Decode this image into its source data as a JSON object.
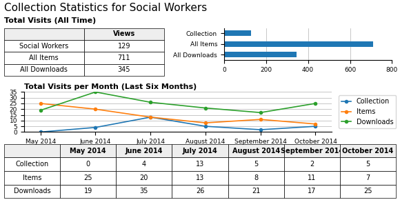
{
  "title": "Collection Statistics for Social Workers",
  "chart_data": [
    {
      "type": "table",
      "title": "Total Visits (All Time)",
      "orientation": "horizontal",
      "categories": [
        "Social Workers",
        "All Items",
        "All Downloads"
      ],
      "series": [
        {
          "name": "Views",
          "values": [
            129,
            711,
            345
          ]
        }
      ]
    },
    {
      "type": "bar",
      "orientation": "horizontal",
      "categories": [
        "Collection",
        "All Items",
        "All Downloads"
      ],
      "values": [
        129,
        711,
        345
      ],
      "xlim": [
        0,
        800
      ],
      "xticks": [
        0,
        200,
        400,
        600,
        800
      ],
      "grid": true
    },
    {
      "type": "line",
      "title": "Total Visits per Month (Last Six Months)",
      "categories": [
        "May 2014",
        "June 2014",
        "July 2014",
        "August 2014",
        "September 2014",
        "October 2014"
      ],
      "series": [
        {
          "name": "Collection",
          "values": [
            0,
            4,
            13,
            5,
            2,
            5
          ]
        },
        {
          "name": "Items",
          "values": [
            25,
            20,
            13,
            8,
            11,
            7
          ]
        },
        {
          "name": "Downloads",
          "values": [
            19,
            35,
            26,
            21,
            17,
            25
          ]
        }
      ],
      "marker": "o",
      "ylim": [
        0,
        35
      ],
      "yticks": [
        0,
        5,
        10,
        15,
        20,
        25,
        30,
        35
      ],
      "grid": true,
      "legend": "upper left"
    },
    {
      "type": "table",
      "categories": [
        "May 2014",
        "June 2014",
        "July 2014",
        "August 2014",
        "September 2014",
        "October 2014"
      ],
      "series": [
        {
          "name": "Collection",
          "values": [
            0,
            4,
            13,
            5,
            2,
            5
          ]
        },
        {
          "name": "Items",
          "values": [
            25,
            20,
            13,
            8,
            11,
            7
          ]
        },
        {
          "name": "Downloads",
          "values": [
            19,
            35,
            26,
            21,
            17,
            25
          ]
        }
      ]
    }
  ]
}
